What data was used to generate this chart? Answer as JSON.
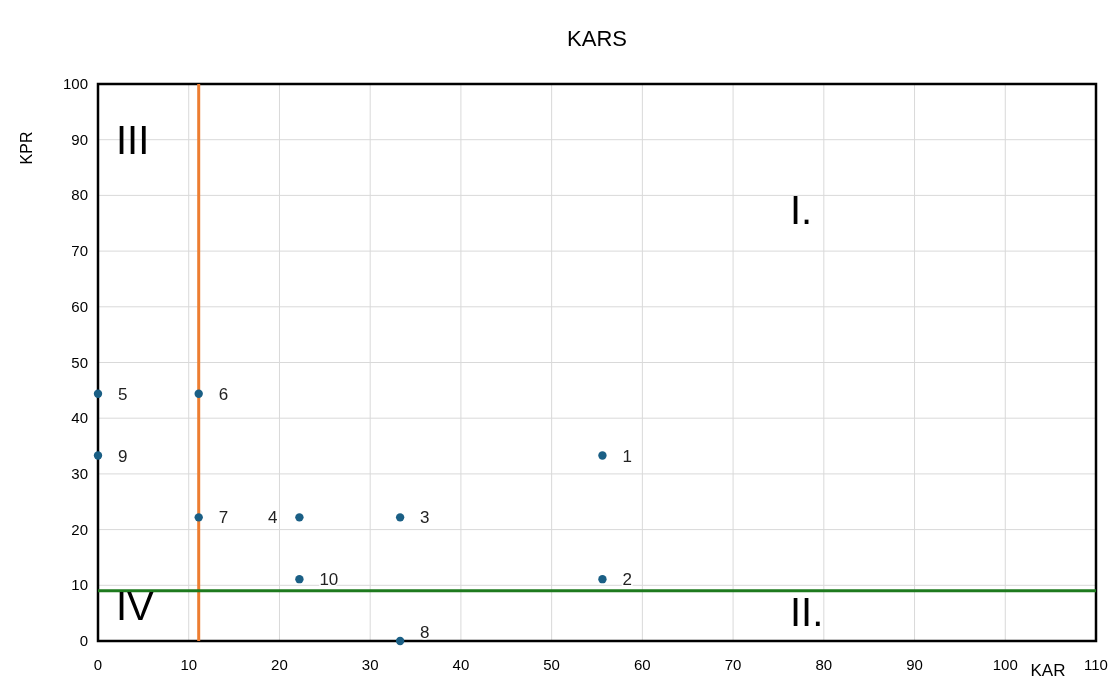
{
  "chart_data": {
    "type": "scatter",
    "title": "KARS",
    "xlabel": "KAR",
    "ylabel": "KPR",
    "x": [
      55.6,
      55.6,
      33.3,
      22.2,
      0,
      11.1,
      11.1,
      33.3,
      0,
      22.2
    ],
    "series": [
      {
        "color": "#1a5f85",
        "values": [
          33.3,
          11.1,
          22.2,
          22.2,
          44.4,
          44.4,
          22.2,
          0,
          33.3,
          11.1
        ]
      }
    ],
    "xlim": [
      0,
      110
    ],
    "ylim": [
      0,
      100
    ],
    "xticks": [
      0,
      10,
      20,
      30,
      40,
      50,
      60,
      70,
      80,
      90,
      100,
      110
    ],
    "yticks": [
      0,
      10,
      20,
      30,
      40,
      50,
      60,
      70,
      80,
      90,
      100
    ],
    "grid": true,
    "marker": "circle",
    "ref_lines": [
      {
        "axis": "x",
        "value": 11.1,
        "color": "#ed7d31"
      },
      {
        "axis": "y",
        "value": 9,
        "color": "#1e7a1e"
      }
    ],
    "annotations": [
      "III",
      "I.",
      "II.",
      "IV",
      {
        "text": "1",
        "x": 55.6,
        "y": 33.3
      },
      {
        "text": "2",
        "x": 55.6,
        "y": 11.1
      },
      {
        "text": "3",
        "x": 33.3,
        "y": 22.2
      },
      {
        "text": "4",
        "x": 22.2,
        "y": 22.2
      },
      {
        "text": "5",
        "x": 0,
        "y": 44.4
      },
      {
        "text": "6",
        "x": 11.1,
        "y": 44.4
      },
      {
        "text": "7",
        "x": 11.1,
        "y": 22.2
      },
      {
        "text": "8",
        "x": 33.3,
        "y": 0
      },
      {
        "text": "9",
        "x": 0,
        "y": 33.3
      },
      {
        "text": "10",
        "x": 22.2,
        "y": 11.1
      }
    ]
  }
}
